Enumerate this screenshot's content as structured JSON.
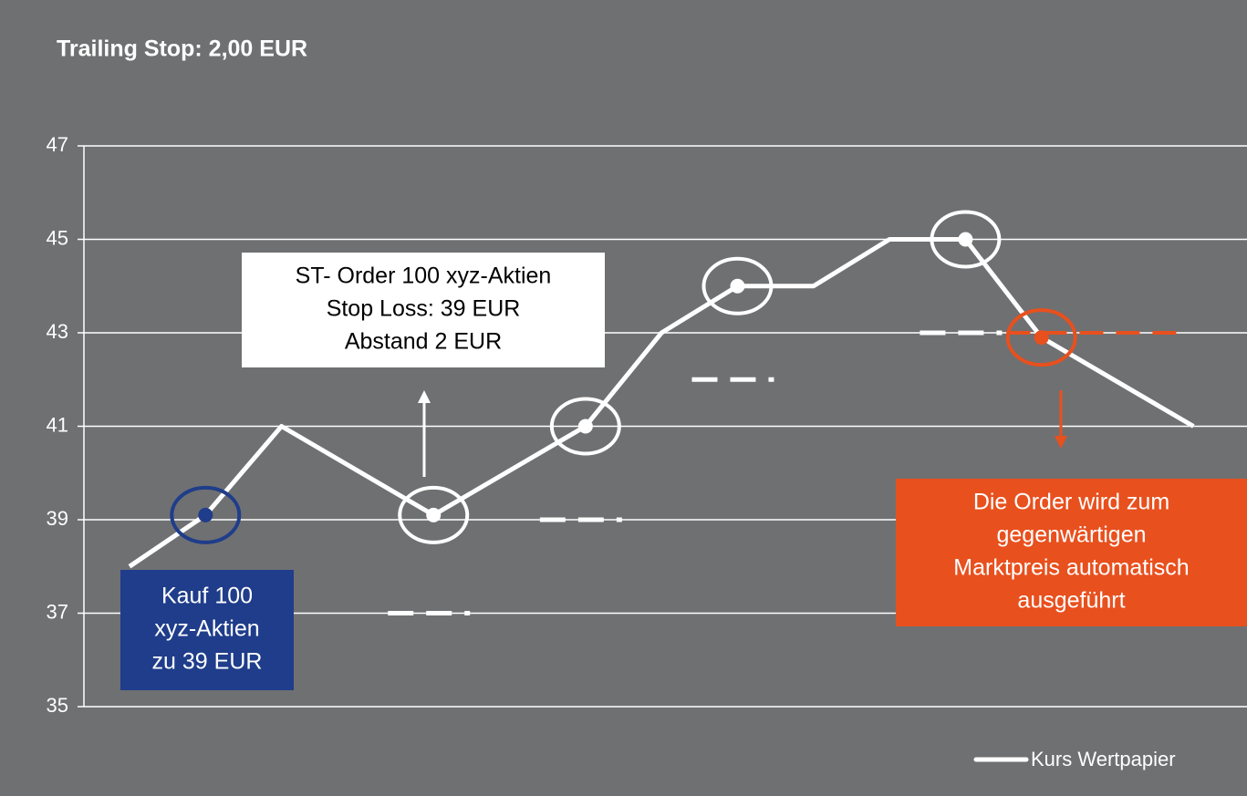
{
  "chart_data": {
    "type": "line",
    "title": "Trailing Stop: 2,00 EUR",
    "x": [
      0,
      1,
      2,
      4,
      6,
      7,
      8,
      9,
      10,
      11,
      12,
      14
    ],
    "xlim": [
      -0.6,
      14.5
    ],
    "series": [
      {
        "name": "Kurs Wertpapier",
        "color": "#ffffff",
        "values": [
          38,
          39.1,
          41,
          39.1,
          41,
          43,
          44,
          44,
          45,
          45,
          42.9,
          41
        ]
      }
    ],
    "ylim": [
      35,
      47
    ],
    "yticks": [
      35,
      37,
      39,
      41,
      43,
      45,
      47
    ],
    "grid": true,
    "highlights": [
      {
        "point": 1,
        "color": "#1f3d8a"
      },
      {
        "point": 3,
        "color": "#ffffff"
      },
      {
        "point": 4,
        "color": "#ffffff"
      },
      {
        "point": 6,
        "color": "#ffffff"
      },
      {
        "point": 9,
        "color": "#ffffff"
      },
      {
        "point": 10,
        "color": "#e8501e"
      }
    ],
    "stop_levels": [
      {
        "value": 37,
        "at": 4
      },
      {
        "value": 39,
        "at": 6
      },
      {
        "value": 42,
        "at": 8
      },
      {
        "value": 43,
        "at": 11
      }
    ],
    "annotations": [
      {
        "lines": [
          "Kauf 100",
          "xyz-Aktien",
          "zu 39 EUR"
        ],
        "color": "#1f3d8a"
      },
      {
        "lines": [
          "ST- Order 100 xyz-Aktien",
          "Stop Loss: 39 EUR",
          "Abstand 2 EUR"
        ],
        "color": "#ffffff"
      },
      {
        "lines": [
          "Die Order wird zum",
          "gegenwärtigen",
          "Marktpreis automatisch",
          "ausgeführt"
        ],
        "color": "#e8501e"
      }
    ],
    "legend": "bottom-right"
  }
}
